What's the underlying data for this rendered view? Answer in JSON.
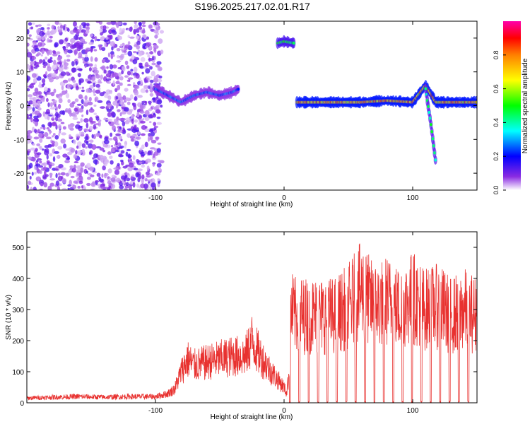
{
  "figure": {
    "title": "S196.2025.217.02.01.R17"
  },
  "chart_data": [
    {
      "type": "heatmap",
      "xlabel": "Height of straight line (km)",
      "ylabel": "Frequency (Hz)",
      "xlim": [
        -200,
        150
      ],
      "ylim": [
        -25,
        25
      ],
      "xticks": [
        -100,
        0,
        100
      ],
      "xtick_labels": [
        "-100",
        "0",
        "100"
      ],
      "yticks": [
        -20,
        -10,
        0,
        10,
        20
      ],
      "ytick_labels": [
        "-20",
        "-10",
        "0",
        "10",
        "20"
      ],
      "colorbar": {
        "label": "Normalized spectral amplitude",
        "range": [
          0.0,
          1.0
        ],
        "ticks": [
          0.0,
          0.2,
          0.4,
          0.6,
          0.8
        ],
        "tick_labels": [
          "0.0",
          "0.2",
          "0.4",
          "0.6",
          "0.8"
        ],
        "colors": [
          "#ffffff",
          "#8a2be2",
          "#0000ff",
          "#00ffff",
          "#00ff00",
          "#ffff00",
          "#ff8000",
          "#ff0000",
          "#ff00aa"
        ]
      },
      "features": [
        {
          "description": "broadband noise",
          "x_range": [
            -200,
            -95
          ],
          "y_range": [
            -25,
            25
          ],
          "amplitude": 0.15
        },
        {
          "description": "signal track",
          "x": [
            -100,
            -90,
            -80,
            -70,
            -60,
            -50,
            -40,
            -35
          ],
          "y": [
            5,
            3,
            1,
            3,
            4,
            3,
            4,
            5
          ],
          "amplitude": 0.3
        },
        {
          "description": "strong carrier",
          "x": [
            10,
            20,
            40,
            60,
            80,
            100,
            110,
            118,
            125,
            150
          ],
          "y": [
            1,
            1,
            1,
            1,
            1.5,
            1,
            6,
            1,
            1,
            1
          ],
          "amplitude": 0.85
        },
        {
          "description": "high-frequency line",
          "x": [
            -5,
            0,
            8
          ],
          "y": [
            18.5,
            19,
            18.5
          ],
          "amplitude": 0.55
        },
        {
          "description": "drift down",
          "x": [
            110,
            114,
            118
          ],
          "y": [
            5,
            -5,
            -17
          ],
          "amplitude": 0.5
        }
      ]
    },
    {
      "type": "line",
      "xlabel": "Height of straight line (km)",
      "ylabel": "SNR (10 * v/v)",
      "xlim": [
        -200,
        150
      ],
      "ylim": [
        0,
        550
      ],
      "xticks": [
        -100,
        0,
        100
      ],
      "xtick_labels": [
        "-100",
        "0",
        "100"
      ],
      "yticks": [
        0,
        100,
        200,
        300,
        400,
        500
      ],
      "ytick_labels": [
        "0",
        "100",
        "200",
        "300",
        "400",
        "500"
      ],
      "color": "#e8312f",
      "series": [
        {
          "x": [
            -200,
            -180,
            -160,
            -140,
            -120,
            -100,
            -90,
            -85,
            -80,
            -75,
            -70,
            -60,
            -50,
            -40,
            -30,
            -25,
            -20,
            -10,
            0,
            2,
            4,
            5,
            8,
            10,
            20,
            30,
            40,
            50,
            60,
            70,
            80,
            90,
            100,
            110,
            120,
            130,
            140,
            150
          ],
          "y": [
            15,
            18,
            20,
            18,
            20,
            20,
            30,
            45,
            100,
            140,
            120,
            130,
            140,
            150,
            150,
            200,
            160,
            100,
            50,
            30,
            100,
            300,
            280,
            280,
            280,
            280,
            280,
            310,
            360,
            310,
            330,
            300,
            340,
            300,
            310,
            280,
            300,
            280
          ]
        }
      ],
      "dropouts_to_zero": true
    }
  ]
}
